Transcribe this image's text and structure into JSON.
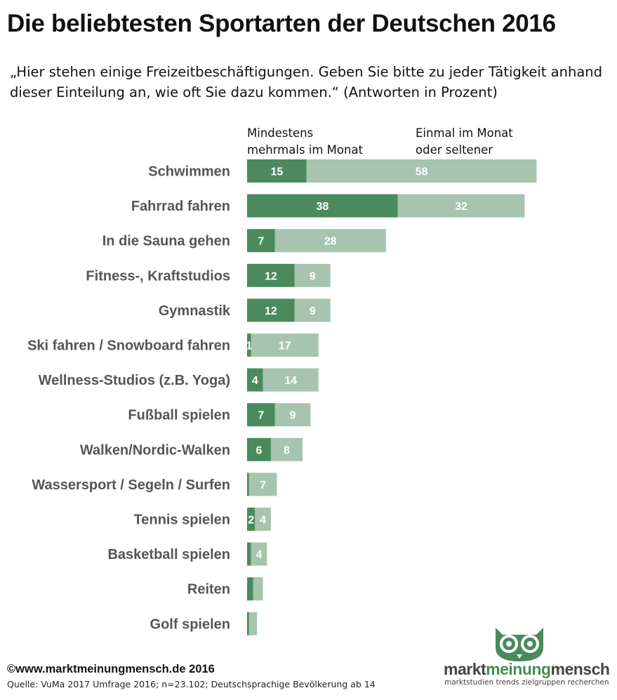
{
  "title": "Die beliebtesten Sportarten der Deutschen 2016",
  "subtitle": "„Hier stehen einige Freizeitbeschäftigungen. Geben Sie bitte zu jeder Tätigkeit anhand dieser Einteilung an, wie oft Sie dazu kommen.“ (Antworten in Prozent)",
  "legend": {
    "left": "Mindestens mehrmals im Monat",
    "right": "Einmal im Monat oder seltener"
  },
  "colors": {
    "frequent": "#4a8a5c",
    "rare": "#a6c4ae",
    "label": "#555555",
    "value": "#ffffff"
  },
  "chart_data": {
    "type": "bar",
    "orientation": "horizontal",
    "stacked": true,
    "categories": [
      "Schwimmen",
      "Fahrrad fahren",
      "In die Sauna gehen",
      "Fitness-, Kraftstudios",
      "Gymnastik",
      "Ski fahren / Snowboard fahren",
      "Wellness-Studios (z.B. Yoga)",
      "Fußball spielen",
      "Walken/Nordic-Walken",
      "Wassersport / Segeln / Surfen",
      "Tennis spielen",
      "Basketball spielen",
      "Reiten",
      "Golf spielen"
    ],
    "series": [
      {
        "name": "Mindestens mehrmals im Monat",
        "values": [
          15,
          38,
          7,
          12,
          12,
          1,
          4,
          7,
          6,
          0.5,
          2,
          1,
          1.5,
          0.5
        ],
        "labels": [
          "15",
          "38",
          "7",
          "12",
          "12",
          "1",
          "4",
          "7",
          "6",
          "",
          "2",
          "",
          "",
          ""
        ]
      },
      {
        "name": "Einmal im Monat oder seltener",
        "values": [
          58,
          32,
          28,
          9,
          9,
          17,
          14,
          9,
          8,
          7,
          4,
          4,
          2.5,
          2
        ],
        "labels": [
          "58",
          "32",
          "28",
          "9",
          "9",
          "17",
          "14",
          "9",
          "8",
          "7",
          "4",
          "4",
          "",
          ""
        ]
      }
    ],
    "xlim": [
      0,
      73
    ]
  },
  "footer": {
    "copyright": "©www.marktmeinungmensch.de 2016",
    "source": "Quelle: VuMa 2017 Umfrage 2016; n=23.102; Deutschsprachige Bevölkerung ab 14"
  },
  "logo": {
    "part1": "markt",
    "part2": "meinung",
    "part3": "mensch",
    "tagline": "marktstudien trends zielgruppen recherchen"
  }
}
